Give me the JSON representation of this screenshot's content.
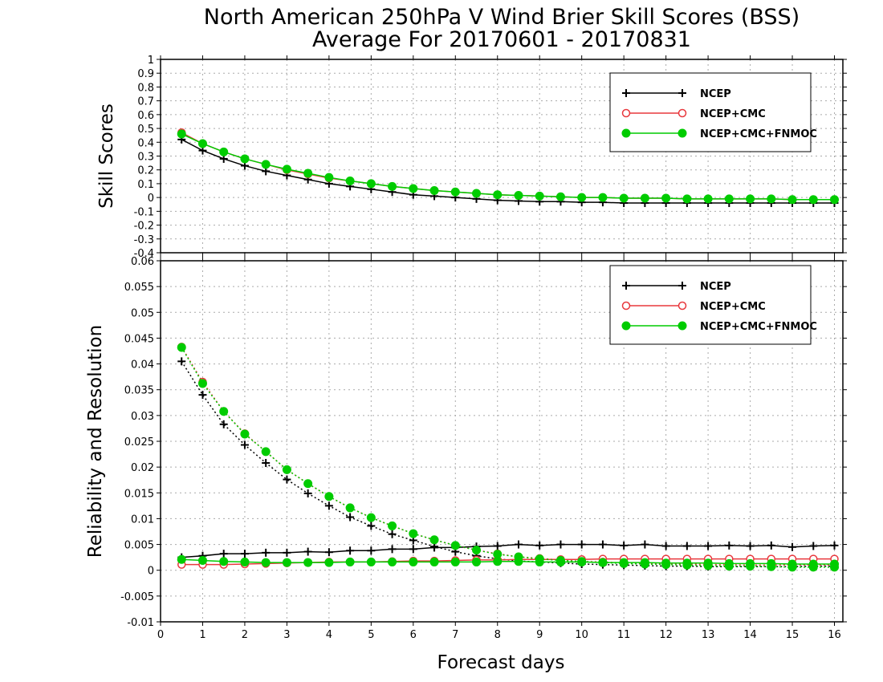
{
  "title": "North American 250hPa V Wind Brier Skill Scores (BSS)",
  "subtitle": "Average For 20170601 - 20170831",
  "xlabel": "Forecast days",
  "colors": {
    "NCEP": "#000000",
    "NCEP+CMC": "#e8383d",
    "NCEP+CMC+FNMOC": "#00cc00",
    "grid": "#aaaaaa"
  },
  "chart_data": [
    {
      "type": "line",
      "ylabel": "Skill Scores",
      "xlim": [
        0,
        16.2
      ],
      "ylim": [
        -0.4,
        1
      ],
      "grid": true,
      "legend_position": "top-right",
      "x_ticks": [
        "0",
        "1",
        "2",
        "3",
        "4",
        "5",
        "6",
        "7",
        "8",
        "9",
        "10",
        "11",
        "12",
        "13",
        "14",
        "15",
        "16"
      ],
      "y_ticks": [
        "-0.4",
        "-0.3",
        "-0.2",
        "-0.1",
        "0",
        "0.1",
        "0.2",
        "0.3",
        "0.4",
        "0.5",
        "0.6",
        "0.7",
        "0.8",
        "0.9",
        "1"
      ],
      "x": [
        0.5,
        1,
        1.5,
        2,
        2.5,
        3,
        3.5,
        4,
        4.5,
        5,
        5.5,
        6,
        6.5,
        7,
        7.5,
        8,
        8.5,
        9,
        9.5,
        10,
        10.5,
        11,
        11.5,
        12,
        12.5,
        13,
        13.5,
        14,
        14.5,
        15,
        15.5,
        16
      ],
      "series": [
        {
          "name": "NCEP",
          "style": "solid",
          "marker": "plus",
          "values": [
            0.42,
            0.34,
            0.28,
            0.23,
            0.19,
            0.16,
            0.13,
            0.1,
            0.08,
            0.06,
            0.04,
            0.02,
            0.01,
            0.0,
            -0.01,
            -0.02,
            -0.025,
            -0.03,
            -0.03,
            -0.035,
            -0.035,
            -0.04,
            -0.04,
            -0.04,
            -0.04,
            -0.04,
            -0.04,
            -0.04,
            -0.04,
            -0.04,
            -0.04,
            -0.04
          ]
        },
        {
          "name": "NCEP+CMC",
          "style": "solid",
          "marker": "open-circle",
          "values": [
            0.47,
            0.39,
            0.33,
            0.28,
            0.24,
            0.2,
            0.17,
            0.14,
            0.12,
            0.1,
            0.08,
            0.065,
            0.05,
            0.04,
            0.03,
            0.02,
            0.015,
            0.01,
            0.005,
            0.0,
            0.0,
            -0.005,
            -0.005,
            -0.005,
            -0.01,
            -0.01,
            -0.01,
            -0.01,
            -0.01,
            -0.015,
            -0.015,
            -0.015
          ]
        },
        {
          "name": "NCEP+CMC+FNMOC",
          "style": "solid",
          "marker": "filled-circle",
          "values": [
            0.46,
            0.39,
            0.33,
            0.28,
            0.24,
            0.205,
            0.175,
            0.145,
            0.12,
            0.1,
            0.08,
            0.065,
            0.05,
            0.04,
            0.03,
            0.02,
            0.015,
            0.01,
            0.005,
            0.0,
            0.0,
            -0.005,
            -0.005,
            -0.005,
            -0.01,
            -0.01,
            -0.01,
            -0.01,
            -0.01,
            -0.015,
            -0.015,
            -0.015
          ]
        }
      ]
    },
    {
      "type": "line",
      "ylabel": "Reliability and Resolution",
      "xlabel": "Forecast days",
      "xlim": [
        0,
        16.2
      ],
      "ylim": [
        -0.01,
        0.06
      ],
      "grid": true,
      "legend_position": "top-right",
      "x_ticks": [
        "0",
        "1",
        "2",
        "3",
        "4",
        "5",
        "6",
        "7",
        "8",
        "9",
        "10",
        "11",
        "12",
        "13",
        "14",
        "15",
        "16"
      ],
      "y_ticks": [
        "-0.01",
        "-0.005",
        "0",
        "0.005",
        "0.01",
        "0.015",
        "0.02",
        "0.025",
        "0.03",
        "0.035",
        "0.04",
        "0.045",
        "0.05",
        "0.055",
        "0.06"
      ],
      "x": [
        0.5,
        1,
        1.5,
        2,
        2.5,
        3,
        3.5,
        4,
        4.5,
        5,
        5.5,
        6,
        6.5,
        7,
        7.5,
        8,
        8.5,
        9,
        9.5,
        10,
        10.5,
        11,
        11.5,
        12,
        12.5,
        13,
        13.5,
        14,
        14.5,
        15,
        15.5,
        16
      ],
      "series": [
        {
          "name": "NCEP",
          "component": "reliability",
          "style": "solid",
          "marker": "plus",
          "values": [
            0.0025,
            0.0028,
            0.0032,
            0.0032,
            0.0034,
            0.0034,
            0.0036,
            0.0035,
            0.0038,
            0.0038,
            0.0041,
            0.0041,
            0.0044,
            0.0044,
            0.0046,
            0.0047,
            0.005,
            0.0048,
            0.005,
            0.005,
            0.005,
            0.0048,
            0.005,
            0.0047,
            0.0047,
            0.0047,
            0.0048,
            0.0047,
            0.0048,
            0.0045,
            0.0047,
            0.0048
          ]
        },
        {
          "name": "NCEP",
          "component": "resolution",
          "style": "dotted",
          "marker": "plus",
          "values": [
            0.0405,
            0.034,
            0.0283,
            0.0243,
            0.0208,
            0.0176,
            0.0149,
            0.0125,
            0.0103,
            0.0086,
            0.007,
            0.0058,
            0.0046,
            0.0036,
            0.0028,
            0.0022,
            0.0018,
            0.0016,
            0.0014,
            0.0012,
            0.0011,
            0.001,
            0.0009,
            0.0008,
            0.0008,
            0.0007,
            0.0007,
            0.0007,
            0.0007,
            0.0007,
            0.0008,
            0.0008
          ]
        },
        {
          "name": "NCEP+CMC",
          "component": "reliability",
          "style": "solid",
          "marker": "open-circle",
          "values": [
            0.0011,
            0.0011,
            0.0011,
            0.0012,
            0.0013,
            0.0014,
            0.0015,
            0.0016,
            0.0016,
            0.0016,
            0.0017,
            0.0018,
            0.0018,
            0.0019,
            0.002,
            0.002,
            0.0021,
            0.0021,
            0.0021,
            0.0021,
            0.0022,
            0.0022,
            0.0022,
            0.0022,
            0.0022,
            0.0022,
            0.0022,
            0.0022,
            0.0022,
            0.0022,
            0.0022,
            0.0022
          ]
        },
        {
          "name": "NCEP+CMC",
          "component": "resolution",
          "style": "dotted",
          "marker": "open-circle",
          "values": [
            0.0433,
            0.0365,
            0.0308,
            0.0265,
            0.023,
            0.0195,
            0.0168,
            0.0143,
            0.0121,
            0.0102,
            0.0086,
            0.0071,
            0.0059,
            0.0048,
            0.0039,
            0.0032,
            0.0026,
            0.0023,
            0.002,
            0.0017,
            0.0016,
            0.0014,
            0.0013,
            0.0012,
            0.0012,
            0.0011,
            0.0011,
            0.001,
            0.001,
            0.001,
            0.001,
            0.001
          ]
        },
        {
          "name": "NCEP+CMC+FNMOC",
          "component": "reliability",
          "style": "solid",
          "marker": "filled-circle",
          "values": [
            0.0021,
            0.0019,
            0.0017,
            0.0016,
            0.0015,
            0.0015,
            0.0015,
            0.0015,
            0.0016,
            0.0016,
            0.0016,
            0.0016,
            0.0016,
            0.0016,
            0.0016,
            0.0017,
            0.0017,
            0.0016,
            0.0016,
            0.0016,
            0.0015,
            0.0015,
            0.0015,
            0.0014,
            0.0014,
            0.0014,
            0.0013,
            0.0013,
            0.0013,
            0.0012,
            0.0012,
            0.0012
          ]
        },
        {
          "name": "NCEP+CMC+FNMOC",
          "component": "resolution",
          "style": "dotted",
          "marker": "filled-circle",
          "values": [
            0.0432,
            0.0362,
            0.0308,
            0.0264,
            0.023,
            0.0195,
            0.0168,
            0.0143,
            0.0121,
            0.0102,
            0.0086,
            0.0071,
            0.0059,
            0.0048,
            0.0039,
            0.0031,
            0.0026,
            0.0022,
            0.0019,
            0.0017,
            0.0015,
            0.0013,
            0.0012,
            0.0011,
            0.001,
            0.0009,
            0.0008,
            0.0008,
            0.0007,
            0.0006,
            0.0006,
            0.0006
          ]
        }
      ]
    }
  ]
}
